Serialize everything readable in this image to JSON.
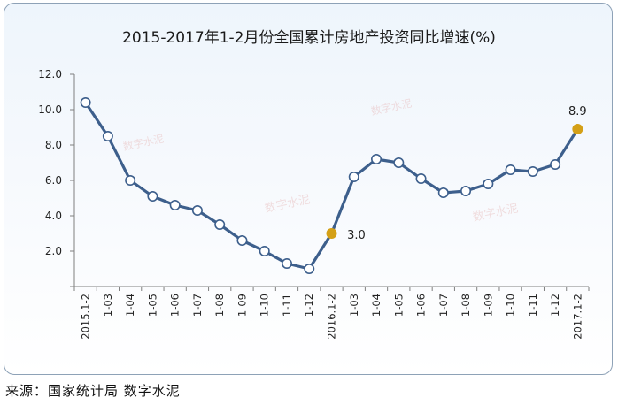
{
  "chart_data": {
    "type": "line",
    "title": "2015-2017年1-2月份全国累计房地产投资同比增速(%)",
    "categories": [
      "2015.1-2",
      "1-03",
      "1-04",
      "1-05",
      "1-06",
      "1-07",
      "1-08",
      "1-09",
      "1-10",
      "1-11",
      "1-12",
      "2016.1-2",
      "1-03",
      "1-04",
      "1-05",
      "1-06",
      "1-07",
      "1-08",
      "1-09",
      "1-10",
      "1-11",
      "1-12",
      "2017.1-2"
    ],
    "values": [
      10.4,
      8.5,
      6.0,
      5.1,
      4.6,
      4.3,
      3.5,
      2.6,
      2.0,
      1.3,
      1.0,
      3.0,
      6.2,
      7.2,
      7.0,
      6.1,
      5.3,
      5.4,
      5.8,
      6.6,
      6.5,
      6.9,
      8.9
    ],
    "ylim": [
      0,
      12
    ],
    "yticks": [
      "-",
      "2.0",
      "4.0",
      "6.0",
      "8.0",
      "10.0",
      "12.0"
    ],
    "highlighted": [
      {
        "index": 11,
        "label": "3.0"
      },
      {
        "index": 22,
        "label": "8.9"
      }
    ],
    "line_color": "#3d5f8c",
    "highlight_color": "#d4a017",
    "grid": false
  },
  "source": "来源：国家统计局 数字水泥",
  "watermark": "数字水泥"
}
